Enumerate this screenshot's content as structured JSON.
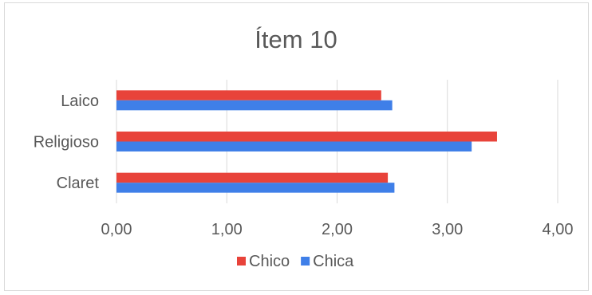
{
  "chart_data": {
    "type": "bar",
    "orientation": "horizontal",
    "title": "Ítem 10",
    "categories": [
      "Laico",
      "Religioso",
      "Claret"
    ],
    "series": [
      {
        "name": "Chico",
        "color": "#e8433a",
        "values": [
          2.4,
          3.45,
          2.46
        ]
      },
      {
        "name": "Chica",
        "color": "#3f7fe8",
        "values": [
          2.5,
          3.22,
          2.52
        ]
      }
    ],
    "xlim": [
      0,
      4
    ],
    "xticks": [
      "0,00",
      "1,00",
      "2,00",
      "3,00",
      "4,00"
    ],
    "grid": true,
    "legend_position": "bottom"
  }
}
